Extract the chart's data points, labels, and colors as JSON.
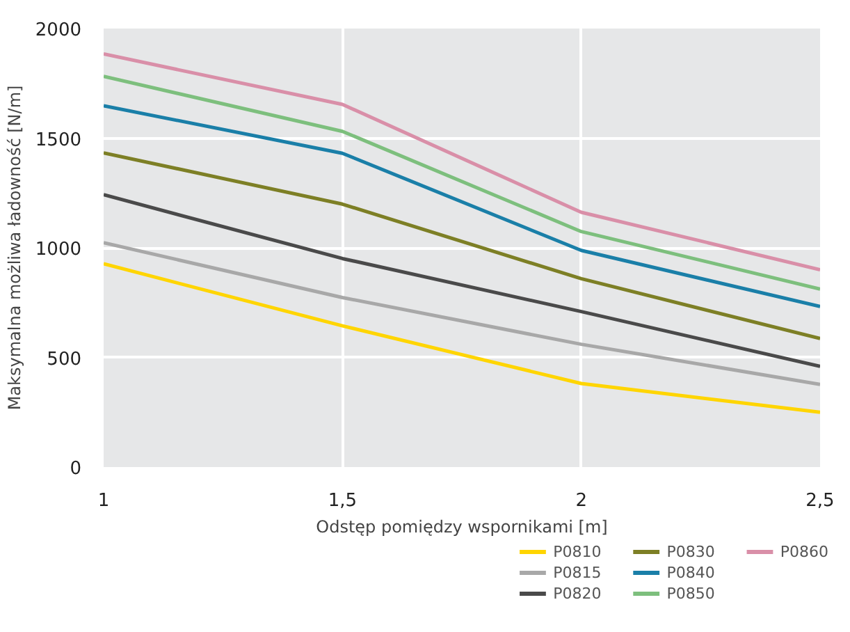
{
  "chart_data": {
    "type": "line",
    "xlabel": "Odstęp pomiędzy wspornikami [m]",
    "ylabel": "Maksymalna możliwa ładowność [N/m]",
    "x": [
      1,
      1.5,
      2,
      2.5
    ],
    "series": [
      {
        "name": "P0810",
        "color": "#ffd500",
        "values": [
          927,
          644,
          381,
          250
        ]
      },
      {
        "name": "P0815",
        "color": "#a8a8a8",
        "values": [
          1023,
          773,
          560,
          377
        ]
      },
      {
        "name": "P0820",
        "color": "#4a4a4a",
        "values": [
          1242,
          951,
          709,
          459
        ]
      },
      {
        "name": "P0830",
        "color": "#7d7f25",
        "values": [
          1433,
          1199,
          859,
          586
        ]
      },
      {
        "name": "P0840",
        "color": "#1a7fa8",
        "values": [
          1648,
          1431,
          988,
          732
        ]
      },
      {
        "name": "P0850",
        "color": "#7dbf7d",
        "values": [
          1782,
          1531,
          1074,
          812
        ]
      },
      {
        "name": "P0860",
        "color": "#d98fa8",
        "values": [
          1884,
          1654,
          1162,
          900
        ]
      }
    ],
    "xlim": [
      1,
      2.5
    ],
    "ylim": [
      0,
      2000
    ],
    "xticks": [
      1,
      {
        "value": 1.5,
        "label": "1,5"
      },
      2,
      {
        "value": 2.5,
        "label": "2,5"
      }
    ],
    "yticks": [
      0,
      500,
      1000,
      1500,
      2000
    ],
    "grid": true,
    "legend": "bottom right",
    "line_style": "solid",
    "marker": "none"
  }
}
